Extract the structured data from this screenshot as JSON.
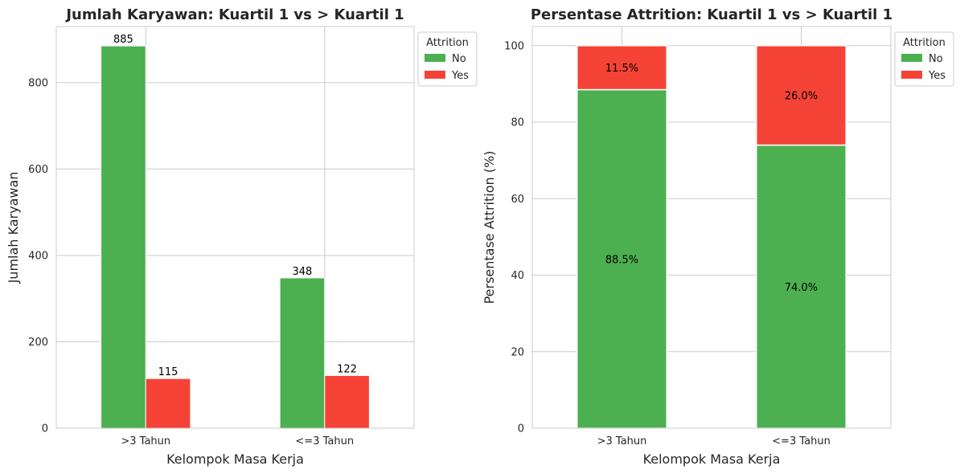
{
  "chart_data": [
    {
      "type": "bar",
      "title": "Jumlah Karyawan: Kuartil 1 vs > Kuartil 1",
      "xlabel": "Kelompok Masa Kerja",
      "ylabel": "Jumlah Karyawan",
      "categories": [
        ">3 Tahun",
        "<=3 Tahun"
      ],
      "series": [
        {
          "name": "No",
          "values": [
            885,
            348
          ],
          "labels": [
            "885",
            "348"
          ]
        },
        {
          "name": "Yes",
          "values": [
            115,
            122
          ],
          "labels": [
            "115",
            "122"
          ]
        }
      ],
      "ylim": [
        0,
        930
      ],
      "yticks": [
        0,
        200,
        400,
        600,
        800
      ],
      "grid": true,
      "legend": {
        "title": "Attrition",
        "placement": "outside top-right"
      }
    },
    {
      "type": "bar",
      "stacked": true,
      "title": "Persentase Attrition: Kuartil 1 vs > Kuartil 1",
      "xlabel": "Kelompok Masa Kerja",
      "ylabel": "Persentase Attrition (%)",
      "categories": [
        ">3 Tahun",
        "<=3 Tahun"
      ],
      "series": [
        {
          "name": "No",
          "values": [
            88.5,
            74.0
          ],
          "labels": [
            "88.5%",
            "74.0%"
          ]
        },
        {
          "name": "Yes",
          "values": [
            11.5,
            26.0
          ],
          "labels": [
            "11.5%",
            "26.0%"
          ]
        }
      ],
      "ylim": [
        0,
        105
      ],
      "yticks": [
        0,
        20,
        40,
        60,
        80,
        100
      ],
      "grid": true,
      "legend": {
        "title": "Attrition",
        "placement": "outside top-right"
      }
    }
  ],
  "colors": {
    "No": "#4caf50",
    "Yes": "#f44336",
    "grid": "#cccccc",
    "axis": "#cccccc",
    "text": "#262626"
  }
}
